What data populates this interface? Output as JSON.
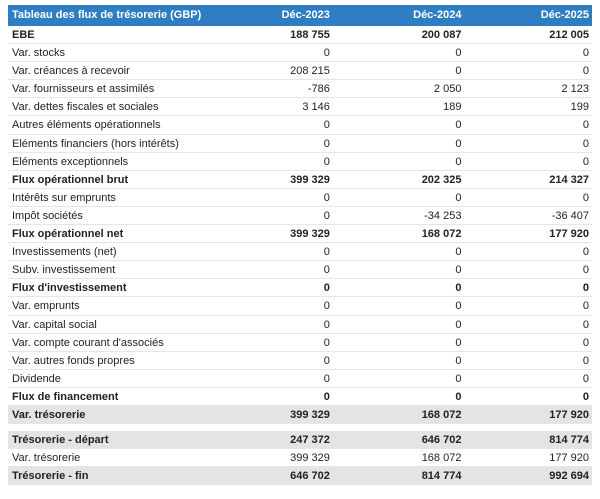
{
  "header": {
    "title": "Tableau des flux de trésorerie (GBP)",
    "columns": [
      "Déc-2023",
      "Déc-2024",
      "Déc-2025"
    ]
  },
  "rows": [
    [
      "EBE",
      "188 755",
      "200 087",
      "212 005"
    ],
    [
      "Var. stocks",
      "0",
      "0",
      "0"
    ],
    [
      "Var. créances à recevoir",
      "208 215",
      "0",
      "0"
    ],
    [
      "Var. fournisseurs et assimilés",
      "-786",
      "2 050",
      "2 123"
    ],
    [
      "Var. dettes fiscales et sociales",
      "3 146",
      "189",
      "199"
    ],
    [
      "Autres éléments opérationnels",
      "0",
      "0",
      "0"
    ],
    [
      "Eléments financiers (hors intérêts)",
      "0",
      "0",
      "0"
    ],
    [
      "Eléments exceptionnels",
      "0",
      "0",
      "0"
    ],
    [
      "Flux opérationnel brut",
      "399 329",
      "202 325",
      "214 327"
    ],
    [
      "Intérêts sur emprunts",
      "0",
      "0",
      "0"
    ],
    [
      "Impôt sociétés",
      "0",
      "-34 253",
      "-36 407"
    ],
    [
      "Flux opérationnel net",
      "399 329",
      "168 072",
      "177 920"
    ],
    [
      "Investissements (net)",
      "0",
      "0",
      "0"
    ],
    [
      "Subv. investissement",
      "0",
      "0",
      "0"
    ],
    [
      "Flux d'investissement",
      "0",
      "0",
      "0"
    ],
    [
      "Var. emprunts",
      "0",
      "0",
      "0"
    ],
    [
      "Var. capital social",
      "0",
      "0",
      "0"
    ],
    [
      "Var. compte courant d'associés",
      "0",
      "0",
      "0"
    ],
    [
      "Var. autres fonds propres",
      "0",
      "0",
      "0"
    ],
    [
      "Dividende",
      "0",
      "0",
      "0"
    ],
    [
      "Flux de financement",
      "0",
      "0",
      "0"
    ],
    [
      "Var. trésorerie",
      "399 329",
      "168 072",
      "177 920"
    ],
    [
      "Trésorerie - départ",
      "247 372",
      "646 702",
      "814 774"
    ],
    [
      "Var. trésorerie",
      "399 329",
      "168 072",
      "177 920"
    ],
    [
      "Trésorerie - fin",
      "646 702",
      "814 774",
      "992 694"
    ]
  ]
}
